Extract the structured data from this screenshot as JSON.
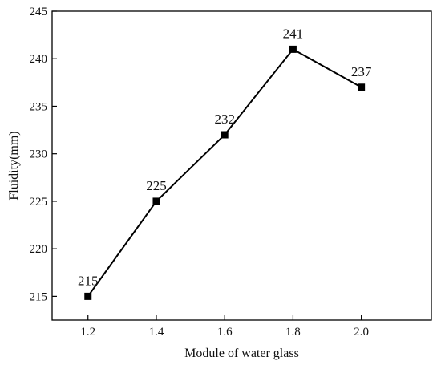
{
  "chart_data": {
    "type": "line",
    "title": "",
    "xlabel": "Module of water glass",
    "ylabel": "Fluidity(mm)",
    "x": [
      1.2,
      1.4,
      1.6,
      1.8,
      2.0
    ],
    "x_tick_labels": [
      "1.2",
      "1.4",
      "1.6",
      "1.8",
      "2.0"
    ],
    "series": [
      {
        "values": [
          215,
          225,
          232,
          241,
          237
        ]
      }
    ],
    "data_labels": [
      "215",
      "225",
      "232",
      "241",
      "237"
    ],
    "xlim": [
      1.095,
      2.205
    ],
    "ylim": [
      212.5,
      245
    ],
    "y_ticks": [
      215,
      220,
      225,
      230,
      235,
      240,
      245
    ],
    "y_tick_labels": [
      "215",
      "220",
      "225",
      "230",
      "235",
      "240",
      "245"
    ],
    "grid": false,
    "legend": "none",
    "marker": "square",
    "line_color": "#000000"
  }
}
